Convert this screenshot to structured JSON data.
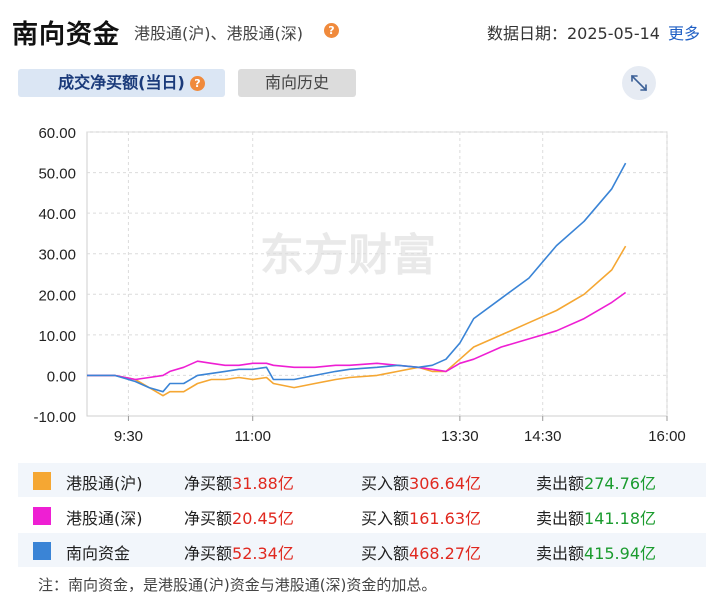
{
  "header": {
    "title": "南向资金",
    "subtitle": "港股通(沪)、港股通(深)",
    "date_label": "数据日期：2025-05-14",
    "more_label": "更多"
  },
  "tabs": [
    {
      "label": "成交净买额(当日)",
      "active": true
    },
    {
      "label": "南向历史",
      "active": false
    }
  ],
  "icons": {
    "help": "question-icon",
    "expand": "expand-arrows-icon"
  },
  "watermark": "东方财富",
  "chart_data": {
    "type": "line",
    "x_ticks": [
      "9:30",
      "11:00",
      "13:30",
      "14:30",
      "16:00"
    ],
    "y_ticks": [
      "60.00",
      "50.00",
      "40.00",
      "30.00",
      "20.00",
      "10.00",
      "0.00",
      "-10.00"
    ],
    "ylim": [
      -10,
      60
    ],
    "x_range_minutes": [
      540,
      960
    ],
    "grid": true,
    "series": [
      {
        "name": "港股通(沪)",
        "color": "#f5a733",
        "x": [
          540,
          560,
          575,
          585,
          595,
          600,
          610,
          620,
          630,
          640,
          650,
          660,
          670,
          675,
          690,
          705,
          720,
          730,
          750,
          765,
          780,
          790,
          800,
          810,
          820,
          840,
          860,
          880,
          900,
          920,
          930
        ],
        "values": [
          0,
          0,
          -1,
          -3,
          -5,
          -4,
          -4,
          -2,
          -1,
          -1,
          -0.5,
          -1,
          -0.5,
          -2,
          -3,
          -2,
          -1,
          -0.5,
          0,
          1,
          2,
          1,
          1,
          4,
          7,
          10,
          13,
          16,
          20,
          26,
          31.88
        ]
      },
      {
        "name": "港股通(深)",
        "color": "#ee1fd3",
        "x": [
          540,
          560,
          575,
          585,
          595,
          600,
          610,
          620,
          630,
          640,
          650,
          660,
          670,
          675,
          690,
          705,
          720,
          730,
          750,
          765,
          780,
          790,
          800,
          810,
          820,
          840,
          860,
          880,
          900,
          920,
          930
        ],
        "values": [
          0,
          0,
          -1,
          -0.5,
          0,
          1,
          2,
          3.5,
          3,
          2.5,
          2.5,
          3,
          3,
          2.5,
          2,
          2,
          2.5,
          2.5,
          3,
          2.5,
          2,
          1.5,
          1,
          3,
          4,
          7,
          9,
          11,
          14,
          18,
          20.45
        ]
      },
      {
        "name": "南向资金",
        "color": "#3a84d6",
        "x": [
          540,
          560,
          575,
          585,
          595,
          600,
          610,
          620,
          630,
          640,
          650,
          660,
          670,
          675,
          690,
          705,
          720,
          730,
          750,
          765,
          780,
          790,
          800,
          810,
          820,
          840,
          860,
          880,
          900,
          920,
          930
        ],
        "values": [
          0,
          0,
          -1.5,
          -3,
          -4,
          -2,
          -2,
          0,
          0.5,
          1,
          1.5,
          1.5,
          2,
          -1,
          -1,
          0,
          1,
          1.5,
          2,
          2.5,
          2,
          2.5,
          4,
          8,
          14,
          19,
          24,
          32,
          38,
          46,
          52.34
        ]
      }
    ]
  },
  "legend": [
    {
      "name": "港股通(沪)",
      "color": "#f5a733",
      "net_label": "净买额",
      "net": "31.88亿",
      "buy_label": "买入额",
      "buy": "306.64亿",
      "sell_label": "卖出额",
      "sell": "274.76亿"
    },
    {
      "name": "港股通(深)",
      "color": "#ee1fd3",
      "net_label": "净买额",
      "net": "20.45亿",
      "buy_label": "买入额",
      "buy": "161.63亿",
      "sell_label": "卖出额",
      "sell": "141.18亿"
    },
    {
      "name": "南向资金",
      "color": "#3a84d6",
      "net_label": "净买额",
      "net": "52.34亿",
      "buy_label": "买入额",
      "buy": "468.27亿",
      "sell_label": "卖出额",
      "sell": "415.94亿"
    }
  ],
  "note": "注：南向资金，是港股通(沪)资金与港股通(深)资金的加总。"
}
